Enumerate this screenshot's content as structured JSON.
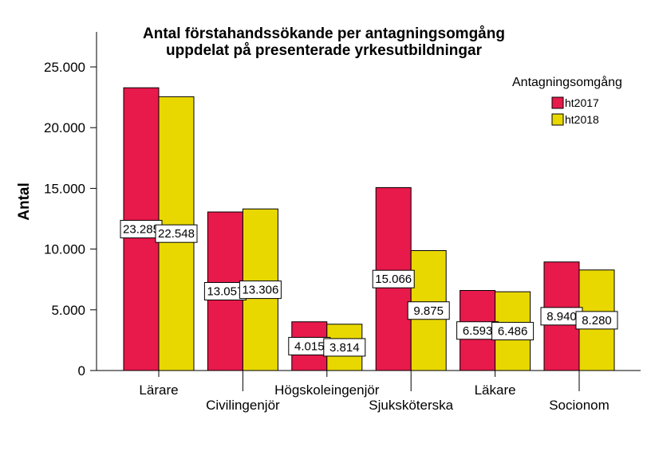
{
  "chart_data": {
    "type": "bar",
    "title": [
      "Antal förstahandssökande per antagningsomgång",
      "uppdelat på presenterade yrkesutbildningar"
    ],
    "ylabel": "Antal",
    "xlabel": "",
    "categories": [
      "Lärare",
      "Civilingenjör",
      "Högskoleingenjör",
      "Sjuksköterska",
      "Läkare",
      "Socionom"
    ],
    "series": [
      {
        "name": "ht2017",
        "color": "#e8194b",
        "values": [
          23285,
          13057,
          4015,
          15066,
          6593,
          8940
        ],
        "labels": [
          "23.285",
          "13.057",
          "4.015",
          "15.066",
          "6.593",
          "8.940"
        ]
      },
      {
        "name": "ht2018",
        "color": "#e8d800",
        "values": [
          22548,
          13306,
          3814,
          9875,
          6486,
          8280
        ],
        "labels": [
          "22.548",
          "13.306",
          "3.814",
          "9.875",
          "6.486",
          "8.280"
        ]
      }
    ],
    "ylim": [
      0,
      25000
    ],
    "yticks": [
      0,
      5000,
      10000,
      15000,
      20000,
      25000
    ],
    "ytick_labels": [
      "0",
      "5.000",
      "10.000",
      "15.000",
      "20.000",
      "25.000"
    ],
    "grid": false,
    "legend": {
      "title": "Antagningsomgång",
      "placement": "top-right"
    }
  }
}
